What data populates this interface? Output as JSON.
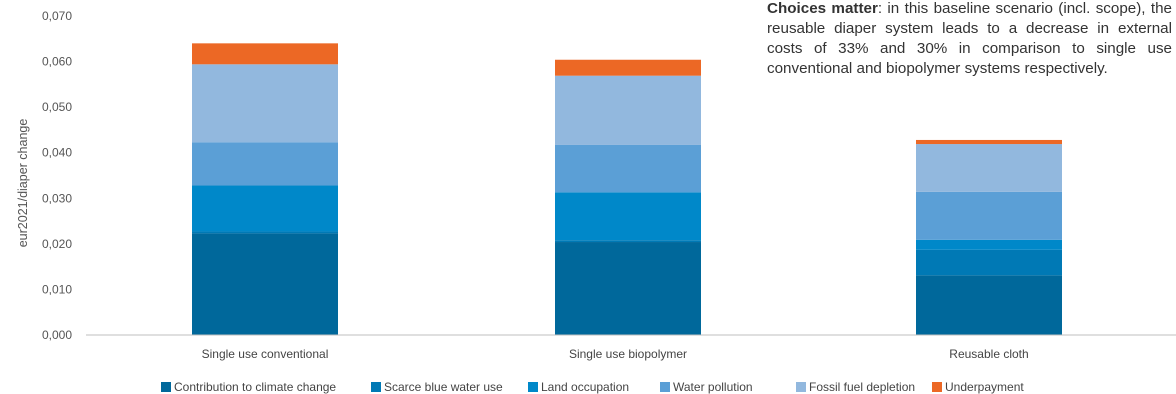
{
  "annotation": {
    "lead": "Choices matter",
    "text": ": in this baseline scenario (incl. scope), the reusable diaper system leads to a decrease in external costs of 33% and 30% in comparison to single use conventional and biopolymer systems respectively."
  },
  "chart_data": {
    "type": "bar",
    "stacked": true,
    "title": "",
    "xlabel": "",
    "ylabel": "eur2021/diaper change",
    "ylim": [
      0,
      0.07
    ],
    "yticks": [
      "0,000",
      "0,010",
      "0,020",
      "0,030",
      "0,040",
      "0,050",
      "0,060",
      "0,070"
    ],
    "grid": false,
    "legend_position": "bottom",
    "categories": [
      "Single use conventional",
      "Single use biopolymer",
      "Reusable cloth"
    ],
    "series": [
      {
        "name": "Contribution to climate change",
        "color": "#00689b",
        "values": [
          0.0223,
          0.0204,
          0.0131
        ]
      },
      {
        "name": "Scarce blue water use",
        "color": "#0079b5",
        "values": [
          0.0004,
          0.0004,
          0.0056
        ]
      },
      {
        "name": "Land occupation",
        "color": "#0088c9",
        "values": [
          0.0101,
          0.0105,
          0.0022
        ]
      },
      {
        "name": "Water pollution",
        "color": "#5b9fd6",
        "values": [
          0.0095,
          0.0104,
          0.0105
        ]
      },
      {
        "name": "Fossil fuel depletion",
        "color": "#92b8de",
        "values": [
          0.0171,
          0.0152,
          0.0105
        ]
      },
      {
        "name": "Underpayment",
        "color": "#ec6825",
        "values": [
          0.0046,
          0.0035,
          0.0009
        ]
      }
    ]
  }
}
